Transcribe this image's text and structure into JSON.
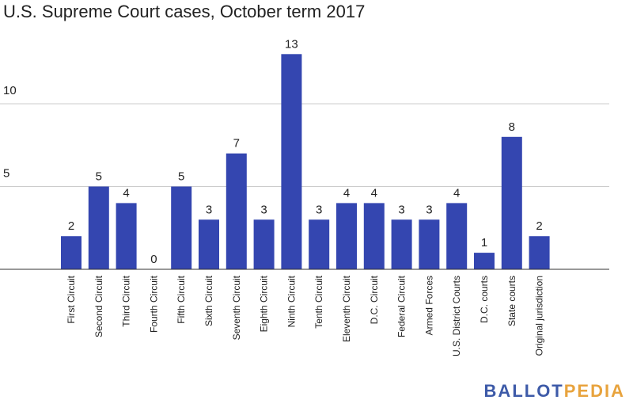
{
  "title": "U.S. Supreme Court cases, October term 2017",
  "logo": {
    "part1": "BALLOT",
    "part2": "PEDIA"
  },
  "colors": {
    "bar": "#3446b0",
    "grid": "#cccccc",
    "axis": "#333333",
    "logo_primary": "#3d5aa8",
    "logo_secondary": "#e8a33d"
  },
  "chart_data": {
    "type": "bar",
    "title": "U.S. Supreme Court cases, October term 2017",
    "xlabel": "",
    "ylabel": "",
    "ylim": [
      0,
      13
    ],
    "yticks": [
      5,
      10
    ],
    "grid": true,
    "legend": "none",
    "categories": [
      "First Circuit",
      "Second Circuit",
      "Third Circuit",
      "Fourth Circuit",
      "Fifth Circuit",
      "Sixth Circuit",
      "Seventh Circuit",
      "Eighth Circuit",
      "Ninth Circuit",
      "Tenth Circuit",
      "Eleventh Circuit",
      "D.C. Circuit",
      "Federal Circuit",
      "Armed Forces",
      "U.S. District Courts",
      "D.C. courts",
      "State courts",
      "Original jurisdiction"
    ],
    "values": [
      2,
      5,
      4,
      0,
      5,
      3,
      7,
      3,
      13,
      3,
      4,
      4,
      3,
      3,
      4,
      1,
      8,
      2
    ]
  }
}
